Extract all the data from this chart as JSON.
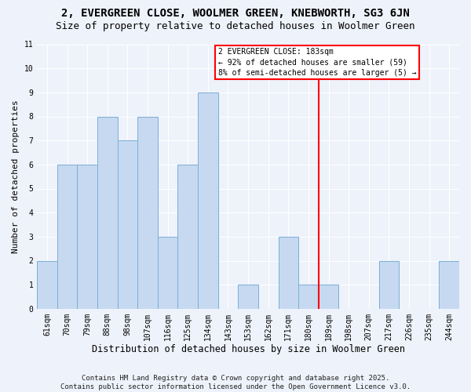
{
  "title": "2, EVERGREEN CLOSE, WOOLMER GREEN, KNEBWORTH, SG3 6JN",
  "subtitle": "Size of property relative to detached houses in Woolmer Green",
  "xlabel": "Distribution of detached houses by size in Woolmer Green",
  "ylabel": "Number of detached properties",
  "categories": [
    "61sqm",
    "70sqm",
    "79sqm",
    "88sqm",
    "98sqm",
    "107sqm",
    "116sqm",
    "125sqm",
    "134sqm",
    "143sqm",
    "153sqm",
    "162sqm",
    "171sqm",
    "180sqm",
    "189sqm",
    "198sqm",
    "207sqm",
    "217sqm",
    "226sqm",
    "235sqm",
    "244sqm"
  ],
  "values": [
    2,
    6,
    6,
    8,
    7,
    8,
    3,
    6,
    9,
    0,
    1,
    0,
    3,
    1,
    1,
    0,
    0,
    2,
    0,
    0,
    2
  ],
  "bar_color": "#c6d9f1",
  "bar_edge_color": "#7bafd4",
  "vline_color": "red",
  "vline_position": 13.5,
  "annotation_text": "2 EVERGREEN CLOSE: 183sqm\n← 92% of detached houses are smaller (59)\n8% of semi-detached houses are larger (5) →",
  "annotation_box_color": "white",
  "annotation_edge_color": "red",
  "footer": "Contains HM Land Registry data © Crown copyright and database right 2025.\nContains public sector information licensed under the Open Government Licence v3.0.",
  "ylim": [
    0,
    11
  ],
  "background_color": "#eef2fa",
  "grid_color": "white",
  "title_fontsize": 10,
  "subtitle_fontsize": 9,
  "xlabel_fontsize": 8.5,
  "ylabel_fontsize": 8,
  "tick_fontsize": 7,
  "annotation_fontsize": 7,
  "footer_fontsize": 6.5
}
